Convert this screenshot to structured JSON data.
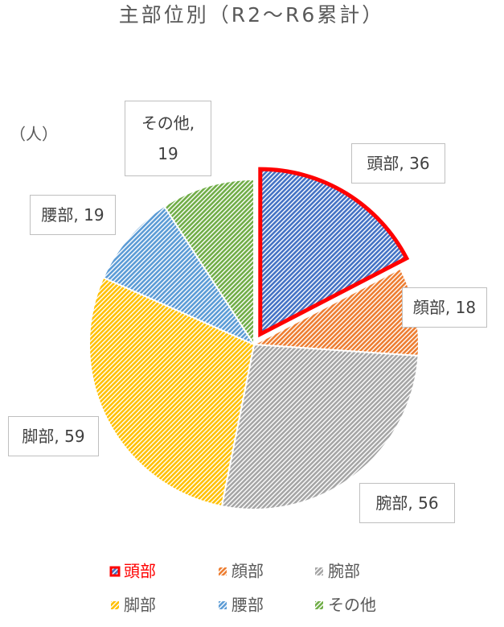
{
  "chart_data": {
    "type": "pie",
    "title": "主部位別（R2～R6累計）",
    "annotation": "（人）",
    "categories": [
      "頭部",
      "顔部",
      "腕部",
      "脚部",
      "腰部",
      "その他"
    ],
    "values": [
      36,
      18,
      56,
      59,
      19,
      19
    ],
    "value_labels": [
      "頭部, 36",
      "顔部, 18",
      "腕部, 56",
      "脚部, 59",
      "腰部, 19",
      "その他, 19"
    ],
    "colors": [
      "#4472c4",
      "#ed7d31",
      "#a5a5a5",
      "#ffc000",
      "#5b9bd5",
      "#70ad47"
    ],
    "exploded": 0,
    "highlight_color": "#ff0000",
    "legend": "bottom"
  }
}
